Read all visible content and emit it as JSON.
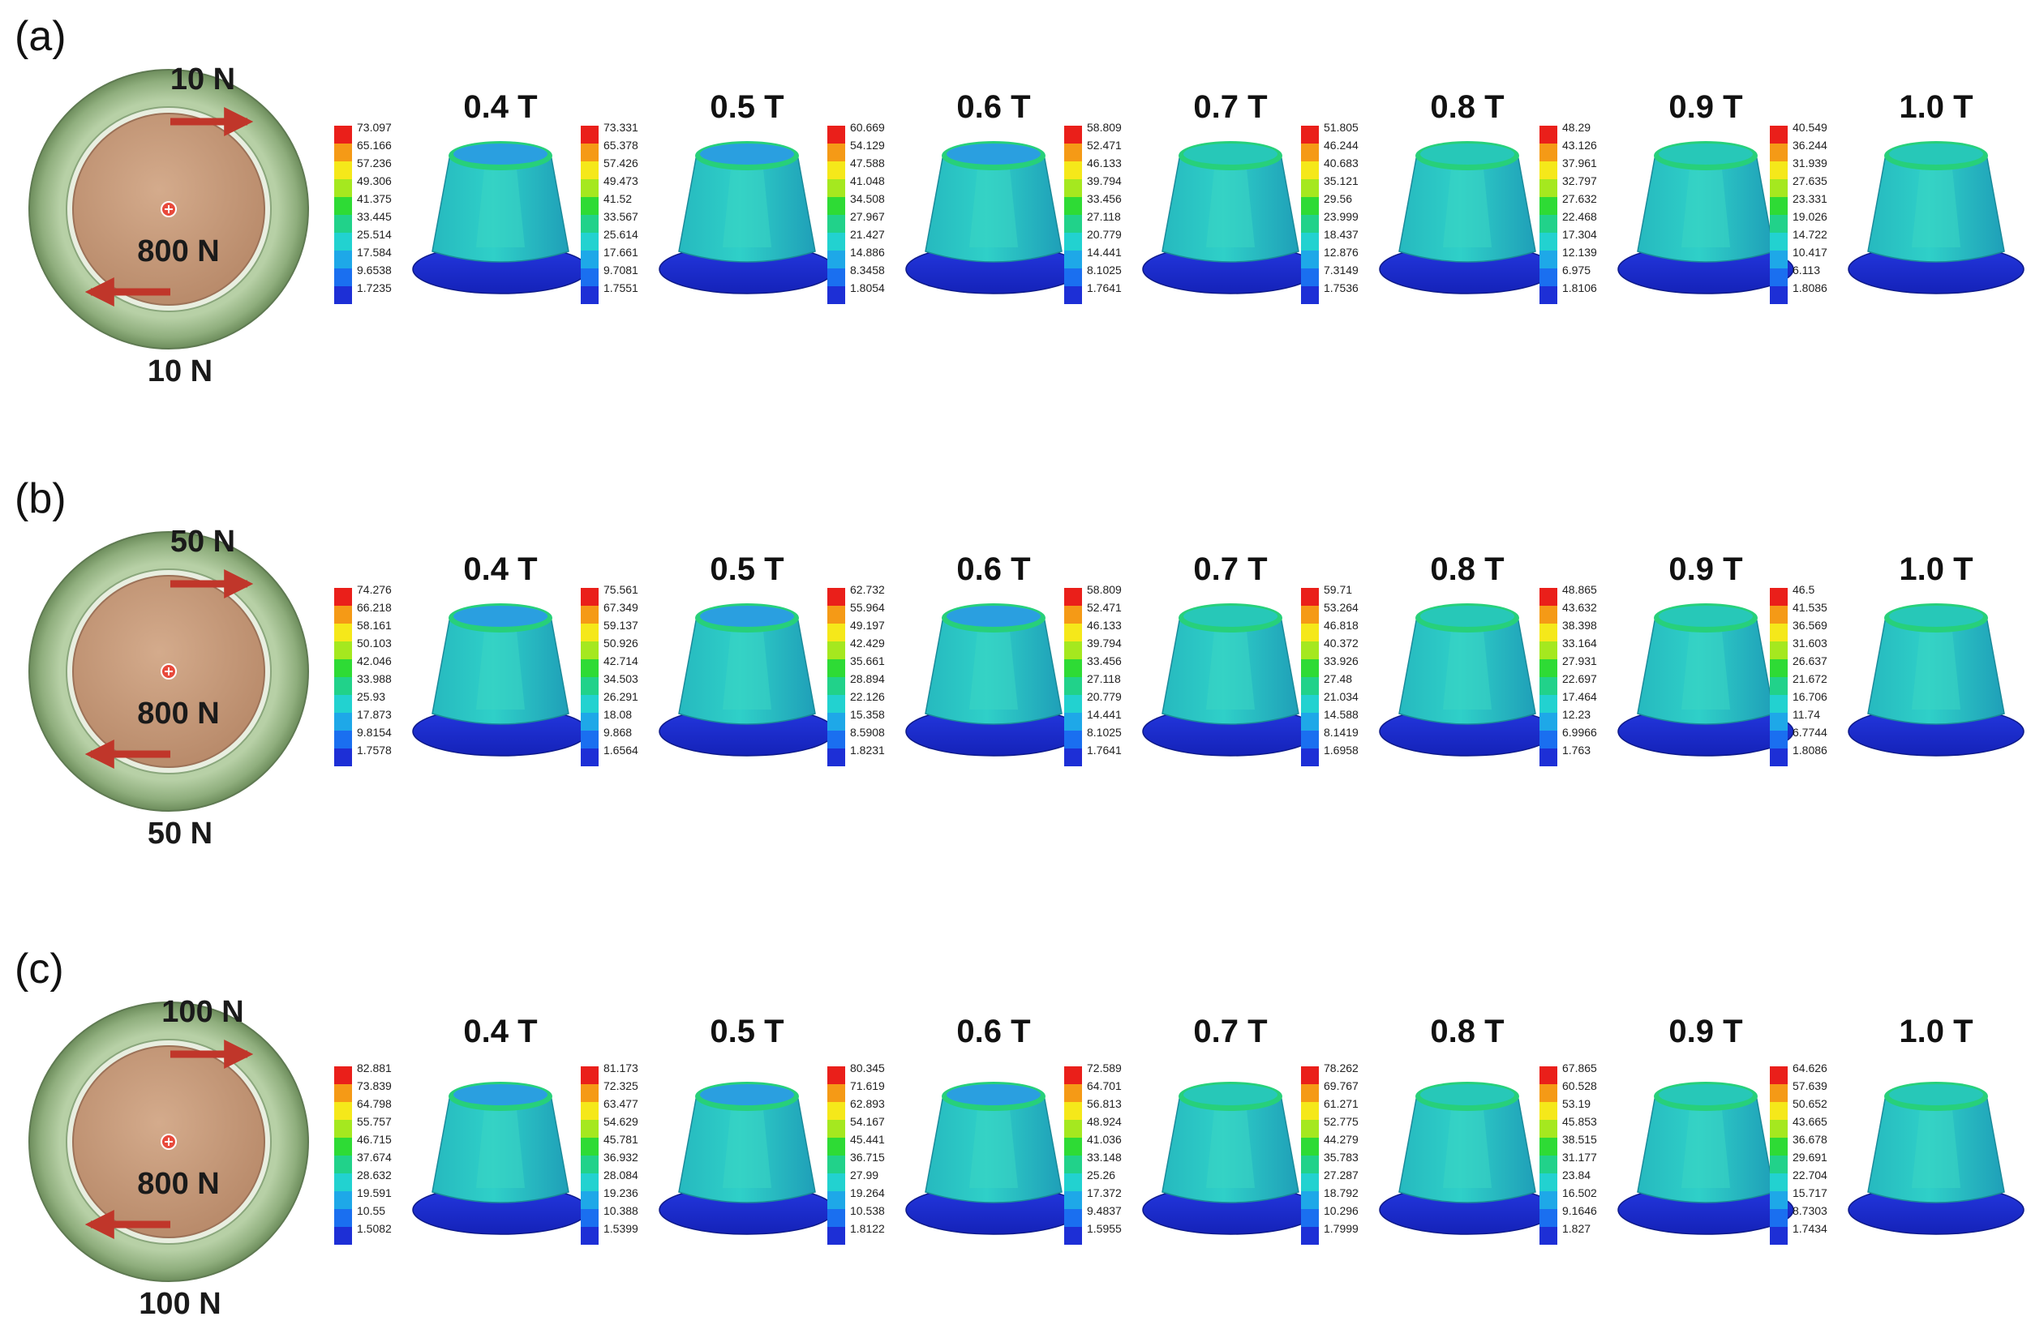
{
  "colors": {
    "scale": [
      "#1d2fd6",
      "#1a6ff0",
      "#1ea8e8",
      "#22d2d0",
      "#21d28a",
      "#2edb35",
      "#a5e81f",
      "#f5e81a",
      "#f59a16",
      "#ea1f1a"
    ],
    "outer_ring": "#98b888",
    "inner_disc": "#c79c7c",
    "arrow": "#c0362a"
  },
  "panels": [
    {
      "label": "(a)",
      "tangential_force_top": "10 N",
      "tangential_force_bottom": "10 N",
      "radial_force": "800 N",
      "cases": [
        {
          "title": "0.4 T",
          "legend": [
            "73.097",
            "65.166",
            "57.236",
            "49.306",
            "41.375",
            "33.445",
            "25.514",
            "17.584",
            "9.6538",
            "1.7235"
          ]
        },
        {
          "title": "0.5 T",
          "legend": [
            "73.331",
            "65.378",
            "57.426",
            "49.473",
            "41.52",
            "33.567",
            "25.614",
            "17.661",
            "9.7081",
            "1.7551"
          ]
        },
        {
          "title": "0.6 T",
          "legend": [
            "60.669",
            "54.129",
            "47.588",
            "41.048",
            "34.508",
            "27.967",
            "21.427",
            "14.886",
            "8.3458",
            "1.8054"
          ]
        },
        {
          "title": "0.7 T",
          "legend": [
            "58.809",
            "52.471",
            "46.133",
            "39.794",
            "33.456",
            "27.118",
            "20.779",
            "14.441",
            "8.1025",
            "1.7641"
          ]
        },
        {
          "title": "0.8 T",
          "legend": [
            "51.805",
            "46.244",
            "40.683",
            "35.121",
            "29.56",
            "23.999",
            "18.437",
            "12.876",
            "7.3149",
            "1.7536"
          ]
        },
        {
          "title": "0.9 T",
          "legend": [
            "48.29",
            "43.126",
            "37.961",
            "32.797",
            "27.632",
            "22.468",
            "17.304",
            "12.139",
            "6.975",
            "1.8106"
          ]
        },
        {
          "title": "1.0 T",
          "legend": [
            "40.549",
            "36.244",
            "31.939",
            "27.635",
            "23.331",
            "19.026",
            "14.722",
            "10.417",
            "6.113",
            "1.8086"
          ]
        }
      ]
    },
    {
      "label": "(b)",
      "tangential_force_top": "50 N",
      "tangential_force_bottom": "50 N",
      "radial_force": "800 N",
      "cases": [
        {
          "title": "0.4 T",
          "legend": [
            "74.276",
            "66.218",
            "58.161",
            "50.103",
            "42.046",
            "33.988",
            "25.93",
            "17.873",
            "9.8154",
            "1.7578"
          ]
        },
        {
          "title": "0.5 T",
          "legend": [
            "75.561",
            "67.349",
            "59.137",
            "50.926",
            "42.714",
            "34.503",
            "26.291",
            "18.08",
            "9.868",
            "1.6564"
          ]
        },
        {
          "title": "0.6 T",
          "legend": [
            "62.732",
            "55.964",
            "49.197",
            "42.429",
            "35.661",
            "28.894",
            "22.126",
            "15.358",
            "8.5908",
            "1.8231"
          ]
        },
        {
          "title": "0.7 T",
          "legend": [
            "58.809",
            "52.471",
            "46.133",
            "39.794",
            "33.456",
            "27.118",
            "20.779",
            "14.441",
            "8.1025",
            "1.7641"
          ]
        },
        {
          "title": "0.8 T",
          "legend": [
            "59.71",
            "53.264",
            "46.818",
            "40.372",
            "33.926",
            "27.48",
            "21.034",
            "14.588",
            "8.1419",
            "1.6958"
          ]
        },
        {
          "title": "0.9 T",
          "legend": [
            "48.865",
            "43.632",
            "38.398",
            "33.164",
            "27.931",
            "22.697",
            "17.464",
            "12.23",
            "6.9966",
            "1.763"
          ]
        },
        {
          "title": "1.0 T",
          "legend": [
            "46.5",
            "41.535",
            "36.569",
            "31.603",
            "26.637",
            "21.672",
            "16.706",
            "11.74",
            "6.7744",
            "1.8086"
          ]
        }
      ]
    },
    {
      "label": "(c)",
      "tangential_force_top": "100 N",
      "tangential_force_bottom": "100 N",
      "radial_force": "800 N",
      "cases": [
        {
          "title": "0.4 T",
          "legend": [
            "82.881",
            "73.839",
            "64.798",
            "55.757",
            "46.715",
            "37.674",
            "28.632",
            "19.591",
            "10.55",
            "1.5082"
          ]
        },
        {
          "title": "0.5 T",
          "legend": [
            "81.173",
            "72.325",
            "63.477",
            "54.629",
            "45.781",
            "36.932",
            "28.084",
            "19.236",
            "10.388",
            "1.5399"
          ]
        },
        {
          "title": "0.6 T",
          "legend": [
            "80.345",
            "71.619",
            "62.893",
            "54.167",
            "45.441",
            "36.715",
            "27.99",
            "19.264",
            "10.538",
            "1.8122"
          ]
        },
        {
          "title": "0.7 T",
          "legend": [
            "72.589",
            "64.701",
            "56.813",
            "48.924",
            "41.036",
            "33.148",
            "25.26",
            "17.372",
            "9.4837",
            "1.5955"
          ]
        },
        {
          "title": "0.8 T",
          "legend": [
            "78.262",
            "69.767",
            "61.271",
            "52.775",
            "44.279",
            "35.783",
            "27.287",
            "18.792",
            "10.296",
            "1.7999"
          ]
        },
        {
          "title": "0.9 T",
          "legend": [
            "67.865",
            "60.528",
            "53.19",
            "45.853",
            "38.515",
            "31.177",
            "23.84",
            "16.502",
            "9.1646",
            "1.827"
          ]
        },
        {
          "title": "1.0 T",
          "legend": [
            "64.626",
            "57.639",
            "50.652",
            "43.665",
            "36.678",
            "29.691",
            "22.704",
            "15.717",
            "8.7303",
            "1.7434"
          ]
        }
      ]
    }
  ]
}
